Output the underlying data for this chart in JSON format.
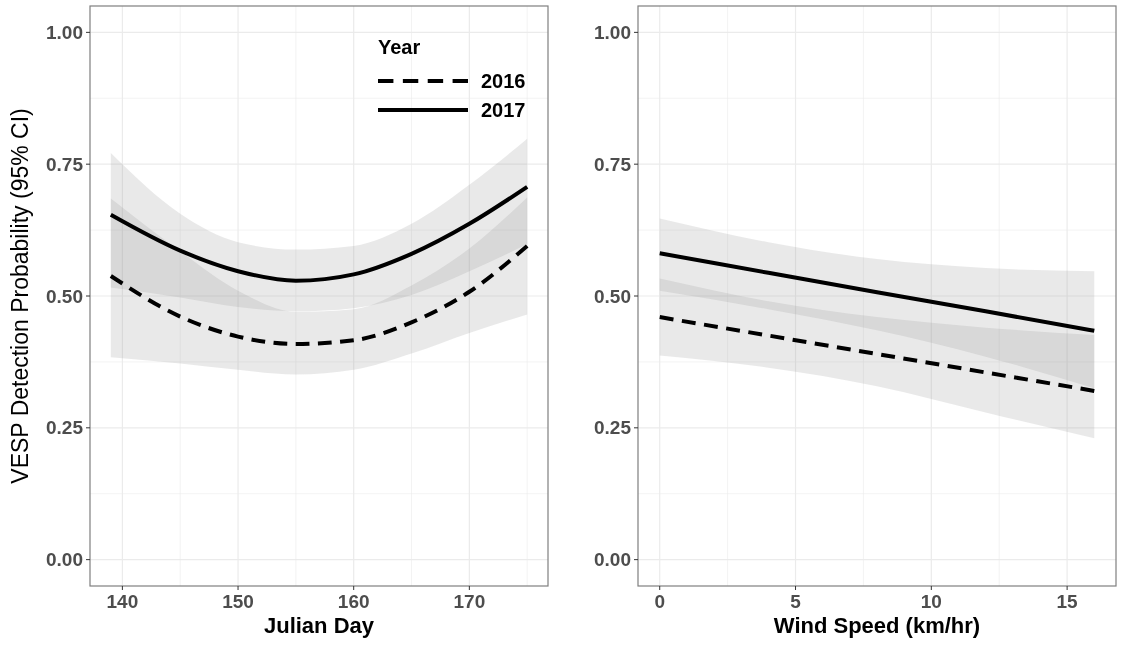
{
  "chart_data": [
    {
      "type": "line",
      "xlabel": "Julian Day",
      "ylabel": "VESP Detection Probability (95% CI)",
      "legend_title": "Year",
      "legend": "top right",
      "grid": true,
      "x": [
        139,
        145,
        150,
        155,
        160,
        165,
        170,
        175
      ],
      "xlim": [
        137.2,
        176.8
      ],
      "xticks": [
        {
          "value": 145,
          "label": null
        },
        140,
        150,
        160,
        170,
        {
          "value": 155,
          "label": null
        },
        {
          "value": 165,
          "label": null
        },
        {
          "value": 175,
          "label": null
        }
      ],
      "ylim": [
        -0.05,
        1.05
      ],
      "yticks": [
        {
          "value": 0,
          "label": "0.00"
        },
        {
          "value": 0.25,
          "label": "0.25"
        },
        {
          "value": 0.5,
          "label": "0.50"
        },
        {
          "value": 0.75,
          "label": "0.75"
        },
        {
          "value": 1,
          "label": "1.00"
        },
        {
          "value": 0.125,
          "label": null
        },
        {
          "value": 0.375,
          "label": null
        },
        {
          "value": 0.625,
          "label": null
        },
        {
          "value": 0.875,
          "label": null
        }
      ],
      "series": [
        {
          "name": "2016",
          "color": "#000000",
          "line_style": "dashed",
          "values": [
            0.538,
            0.461,
            0.423,
            0.409,
            0.416,
            0.45,
            0.508,
            0.595
          ],
          "lower": [
            0.384,
            0.372,
            0.36,
            0.351,
            0.36,
            0.391,
            0.43,
            0.465
          ],
          "upper": [
            0.685,
            0.585,
            0.51,
            0.47,
            0.475,
            0.52,
            0.59,
            0.687
          ]
        },
        {
          "name": "2017",
          "color": "#000000",
          "line_style": "solid",
          "values": [
            0.654,
            0.586,
            0.547,
            0.529,
            0.541,
            0.58,
            0.637,
            0.707
          ],
          "lower": [
            0.516,
            0.497,
            0.479,
            0.471,
            0.477,
            0.502,
            0.547,
            0.598
          ],
          "upper": [
            0.771,
            0.656,
            0.602,
            0.588,
            0.595,
            0.637,
            0.711,
            0.798
          ]
        }
      ]
    },
    {
      "type": "line",
      "xlabel": "Wind Speed (km/hr)",
      "grid": true,
      "x": [
        0,
        4,
        8,
        12,
        16
      ],
      "xlim": [
        -0.8,
        16.8
      ],
      "xticks": [
        0,
        5,
        10,
        15,
        {
          "value": 2.5,
          "label": null
        },
        {
          "value": 7.5,
          "label": null
        },
        {
          "value": 12.5,
          "label": null
        }
      ],
      "ylim": [
        -0.05,
        1.05
      ],
      "yticks": [
        {
          "value": 0,
          "label": "0.00"
        },
        {
          "value": 0.25,
          "label": "0.25"
        },
        {
          "value": 0.5,
          "label": "0.50"
        },
        {
          "value": 0.75,
          "label": "0.75"
        },
        {
          "value": 1,
          "label": "1.00"
        },
        {
          "value": 0.125,
          "label": null
        },
        {
          "value": 0.375,
          "label": null
        },
        {
          "value": 0.625,
          "label": null
        },
        {
          "value": 0.875,
          "label": null
        }
      ],
      "series": [
        {
          "color": "#000000",
          "line_style": "dashed",
          "values": [
            0.46,
            0.425,
            0.39,
            0.355,
            0.32
          ],
          "lower": [
            0.387,
            0.364,
            0.329,
            0.279,
            0.23
          ],
          "upper": [
            0.533,
            0.49,
            0.46,
            0.44,
            0.426
          ]
        },
        {
          "color": "#000000",
          "line_style": "solid",
          "values": [
            0.581,
            0.544,
            0.507,
            0.471,
            0.434
          ],
          "lower": [
            0.51,
            0.475,
            0.435,
            0.385,
            0.325
          ],
          "upper": [
            0.647,
            0.602,
            0.57,
            0.553,
            0.547
          ]
        }
      ]
    }
  ]
}
